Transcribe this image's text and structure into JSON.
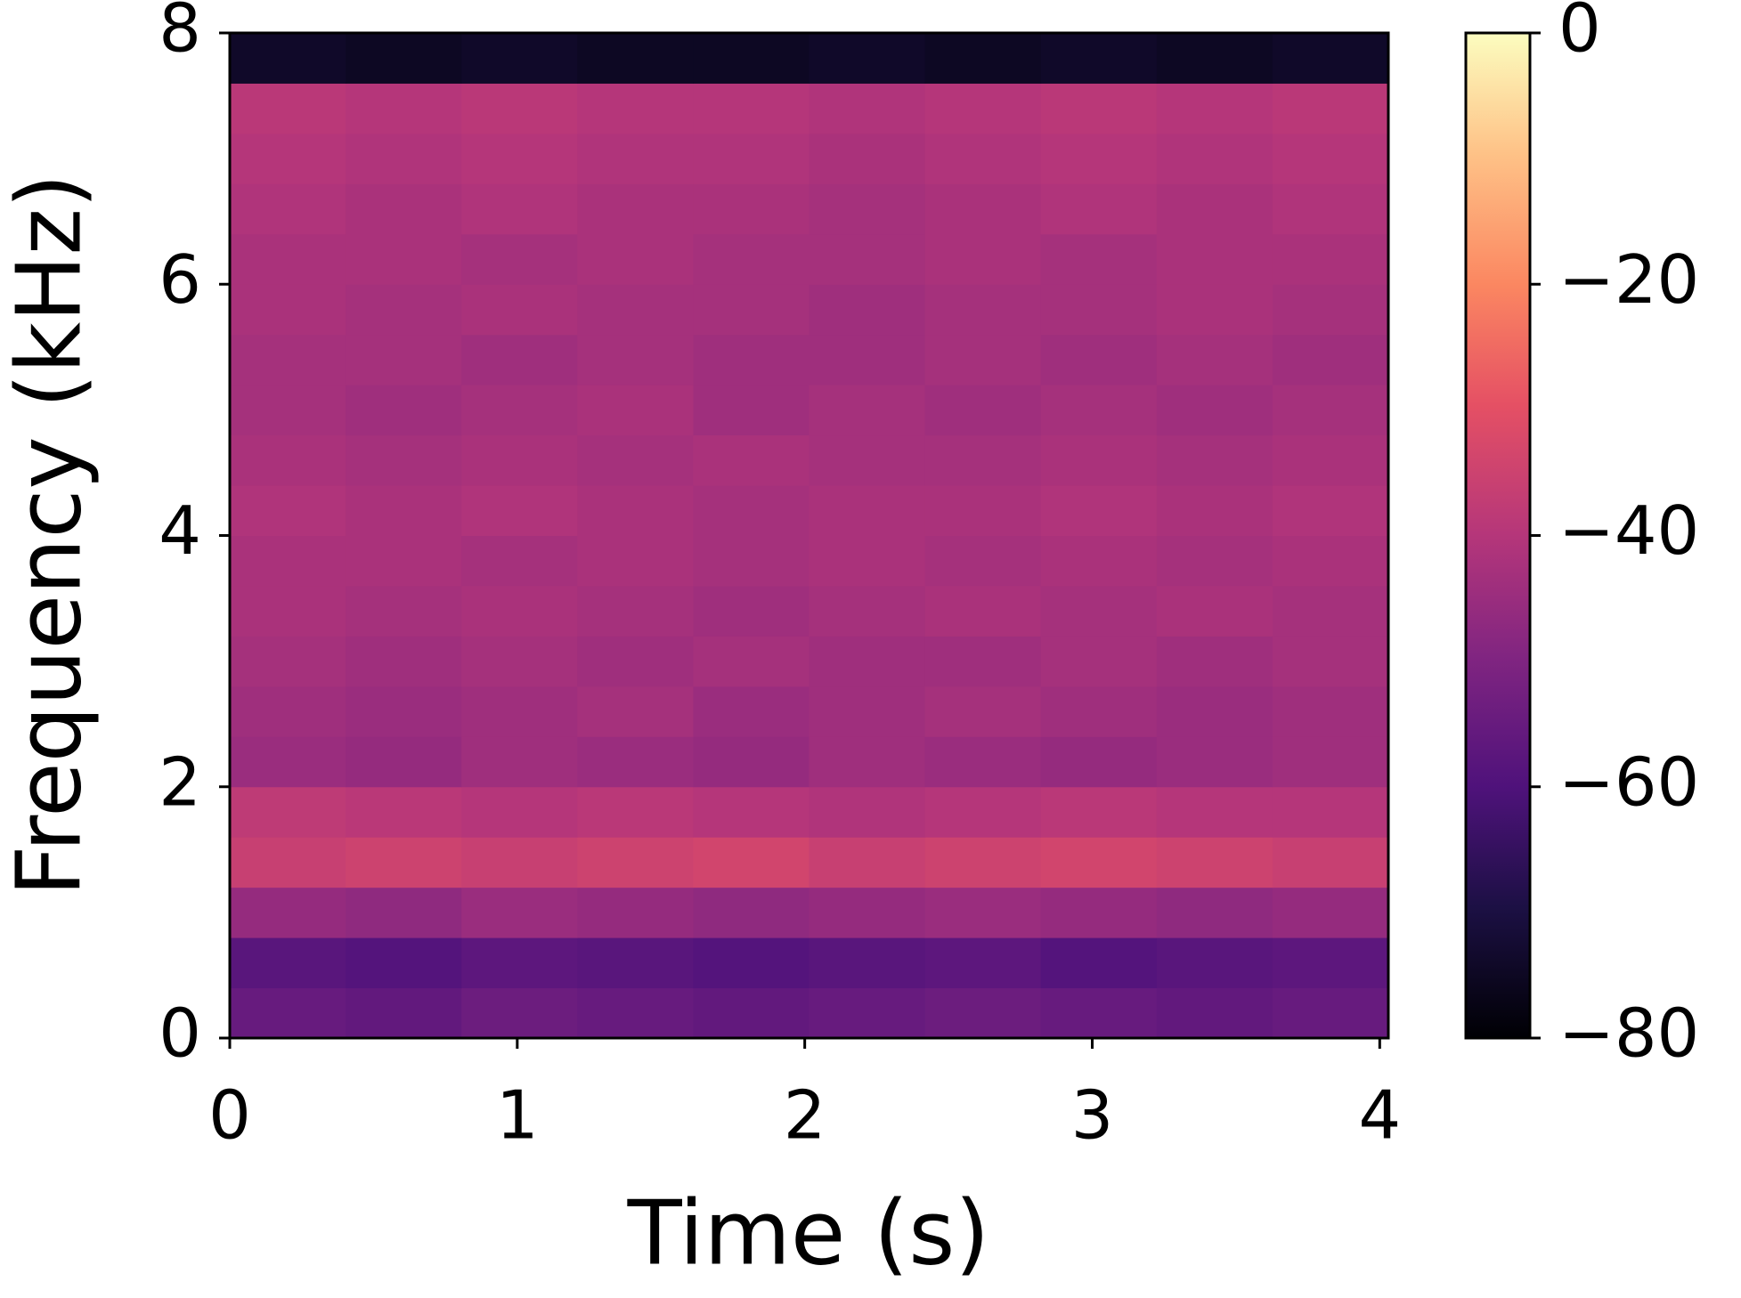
{
  "chart_data": {
    "type": "heatmap",
    "xlabel": "Time (s)",
    "ylabel": "Frequency (kHz)",
    "x_bins": [
      0,
      0.403,
      0.806,
      1.209,
      1.612,
      2.015,
      2.418,
      2.821,
      3.224,
      3.627,
      4.03
    ],
    "y_bins": [
      0,
      0.4,
      0.8,
      1.2,
      1.6,
      2.0,
      2.4,
      2.8,
      3.2,
      3.6,
      4.0,
      4.4,
      4.8,
      5.2,
      5.6,
      6.0,
      6.4,
      6.8,
      7.2,
      7.6,
      8.0
    ],
    "values": [
      [
        -55,
        -56,
        -54,
        -55,
        -56,
        -55,
        -54,
        -55,
        -56,
        -55
      ],
      [
        -58,
        -59,
        -57,
        -58,
        -59,
        -58,
        -57,
        -59,
        -58,
        -57
      ],
      [
        -46,
        -47,
        -45,
        -46,
        -47,
        -46,
        -45,
        -46,
        -47,
        -46
      ],
      [
        -36,
        -35,
        -36,
        -35,
        -34,
        -36,
        -35,
        -34,
        -35,
        -36
      ],
      [
        -38,
        -39,
        -40,
        -39,
        -40,
        -41,
        -40,
        -39,
        -40,
        -40
      ],
      [
        -45,
        -46,
        -44,
        -45,
        -46,
        -44,
        -45,
        -46,
        -45,
        -44
      ],
      [
        -44,
        -45,
        -44,
        -43,
        -45,
        -44,
        -43,
        -44,
        -45,
        -44
      ],
      [
        -43,
        -44,
        -43,
        -44,
        -43,
        -44,
        -44,
        -43,
        -44,
        -43
      ],
      [
        -42,
        -43,
        -42,
        -43,
        -44,
        -43,
        -42,
        -43,
        -42,
        -43
      ],
      [
        -42,
        -42,
        -43,
        -42,
        -43,
        -42,
        -43,
        -42,
        -43,
        -42
      ],
      [
        -41,
        -42,
        -41,
        -42,
        -43,
        -42,
        -42,
        -41,
        -42,
        -41
      ],
      [
        -42,
        -43,
        -42,
        -43,
        -42,
        -43,
        -43,
        -42,
        -43,
        -42
      ],
      [
        -43,
        -44,
        -43,
        -42,
        -44,
        -43,
        -44,
        -43,
        -44,
        -43
      ],
      [
        -43,
        -43,
        -44,
        -43,
        -44,
        -44,
        -43,
        -44,
        -43,
        -44
      ],
      [
        -42,
        -43,
        -42,
        -43,
        -43,
        -44,
        -43,
        -43,
        -42,
        -43
      ],
      [
        -42,
        -42,
        -43,
        -42,
        -43,
        -43,
        -42,
        -43,
        -42,
        -42
      ],
      [
        -41,
        -42,
        -41,
        -42,
        -42,
        -43,
        -42,
        -41,
        -42,
        -41
      ],
      [
        -40,
        -41,
        -40,
        -41,
        -41,
        -42,
        -41,
        -40,
        -41,
        -40
      ],
      [
        -39,
        -40,
        -39,
        -40,
        -40,
        -41,
        -40,
        -39,
        -40,
        -39
      ],
      [
        -74,
        -75,
        -74,
        -75,
        -75,
        -74,
        -75,
        -74,
        -75,
        -74
      ]
    ],
    "colormap": "magma",
    "xlim": [
      0,
      4.03
    ],
    "ylim": [
      0,
      8
    ],
    "xticks": [
      0,
      1,
      2,
      3,
      4
    ],
    "yticks": [
      0,
      2,
      4,
      6,
      8
    ],
    "clim": [
      -80,
      0
    ],
    "cticks": [
      {
        "value": 0,
        "label": "0"
      },
      {
        "value": -20,
        "label": "−20"
      },
      {
        "value": -40,
        "label": "−40"
      },
      {
        "value": -60,
        "label": "−60"
      },
      {
        "value": -80,
        "label": "−80"
      }
    ]
  }
}
